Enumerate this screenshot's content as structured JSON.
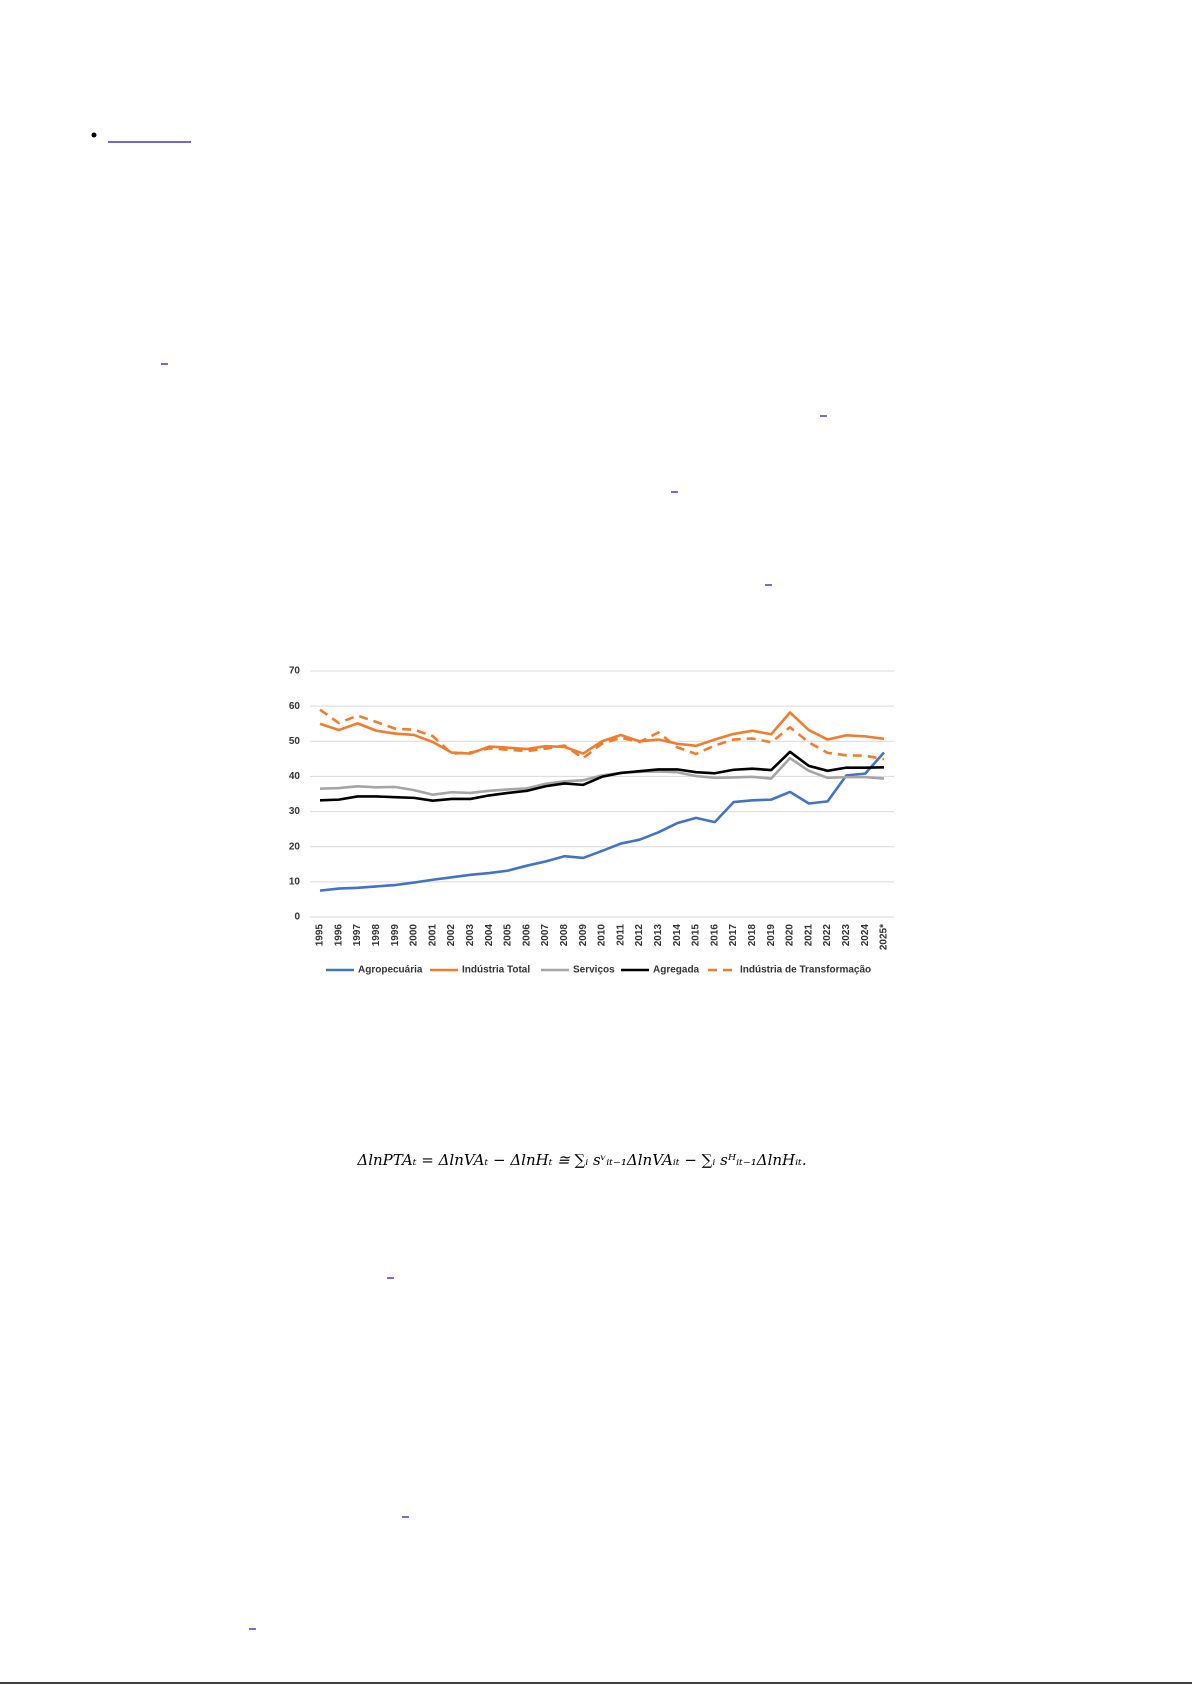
{
  "formula": "ΔlnPTAₜ = ΔlnVAₜ − ΔlnHₜ ≅ ∑ᵢ sᵛᵢₜ₋₁ΔlnVAᵢₜ − ∑ᵢ sᴴᵢₜ₋₁ΔlnHᵢₜ.",
  "chart_data": {
    "type": "line",
    "categories": [
      "1995",
      "1996",
      "1997",
      "1998",
      "1999",
      "2000",
      "2001",
      "2002",
      "2003",
      "2004",
      "2005",
      "2006",
      "2007",
      "2008",
      "2009",
      "2010",
      "2011",
      "2012",
      "2013",
      "2014",
      "2015",
      "2016",
      "2017",
      "2018",
      "2019",
      "2020",
      "2021",
      "2022",
      "2023",
      "2024",
      "2025*"
    ],
    "ylim": [
      0,
      70
    ],
    "yticks": [
      0,
      10,
      20,
      30,
      40,
      50,
      60,
      70
    ],
    "grid": true,
    "legend": "bottom",
    "series": [
      {
        "name": "Agropecuária",
        "color": "#4472c4",
        "values": [
          7.5,
          8.1,
          8.3,
          8.7,
          9.1,
          9.8,
          10.6,
          11.3,
          12.0,
          12.5,
          13.2,
          14.6,
          15.8,
          17.3,
          16.8,
          18.8,
          20.9,
          22.0,
          24.1,
          26.7,
          28.2,
          27.0,
          32.7,
          33.2,
          33.4,
          35.6,
          32.3,
          32.9,
          40.3,
          40.8,
          46.8
        ]
      },
      {
        "name": "Indústria Total",
        "color": "#ed7d31",
        "values": [
          55.0,
          53.2,
          55.1,
          53.0,
          52.2,
          51.8,
          49.8,
          46.8,
          46.5,
          48.5,
          48.2,
          47.8,
          48.6,
          48.4,
          46.5,
          50.0,
          51.8,
          50.0,
          50.5,
          49.3,
          48.7,
          50.5,
          52.1,
          53.0,
          52.0,
          58.2,
          53.2,
          50.5,
          51.7,
          51.4,
          50.7
        ]
      },
      {
        "name": "Serviços",
        "color": "#a5a5a5",
        "values": [
          36.5,
          36.7,
          37.2,
          36.9,
          37.0,
          36.1,
          34.8,
          35.5,
          35.3,
          35.9,
          36.3,
          36.6,
          37.9,
          38.6,
          38.9,
          40.3,
          41.0,
          41.3,
          41.4,
          41.2,
          40.1,
          39.6,
          39.7,
          39.9,
          39.4,
          45.2,
          41.6,
          39.6,
          39.8,
          39.8,
          39.4
        ]
      },
      {
        "name": "Agregada",
        "color": "#000000",
        "values": [
          33.2,
          33.4,
          34.3,
          34.3,
          34.1,
          33.9,
          33.1,
          33.6,
          33.6,
          34.6,
          35.3,
          35.9,
          37.2,
          38.0,
          37.6,
          39.9,
          41.0,
          41.5,
          42.0,
          42.0,
          41.2,
          40.9,
          41.9,
          42.2,
          41.8,
          47.0,
          43.0,
          41.6,
          42.5,
          42.5,
          42.6
        ]
      },
      {
        "name": "Indústria de Transformação",
        "color": "#ed7d31",
        "dash": true,
        "values": [
          59.0,
          55.2,
          57.3,
          55.5,
          53.6,
          53.3,
          51.5,
          46.5,
          46.8,
          48.0,
          47.6,
          47.2,
          47.9,
          48.8,
          45.2,
          49.3,
          51.0,
          49.8,
          52.5,
          48.3,
          46.4,
          48.8,
          50.5,
          50.8,
          49.7,
          54.0,
          49.7,
          46.7,
          46.0,
          45.9,
          44.9
        ]
      }
    ]
  }
}
